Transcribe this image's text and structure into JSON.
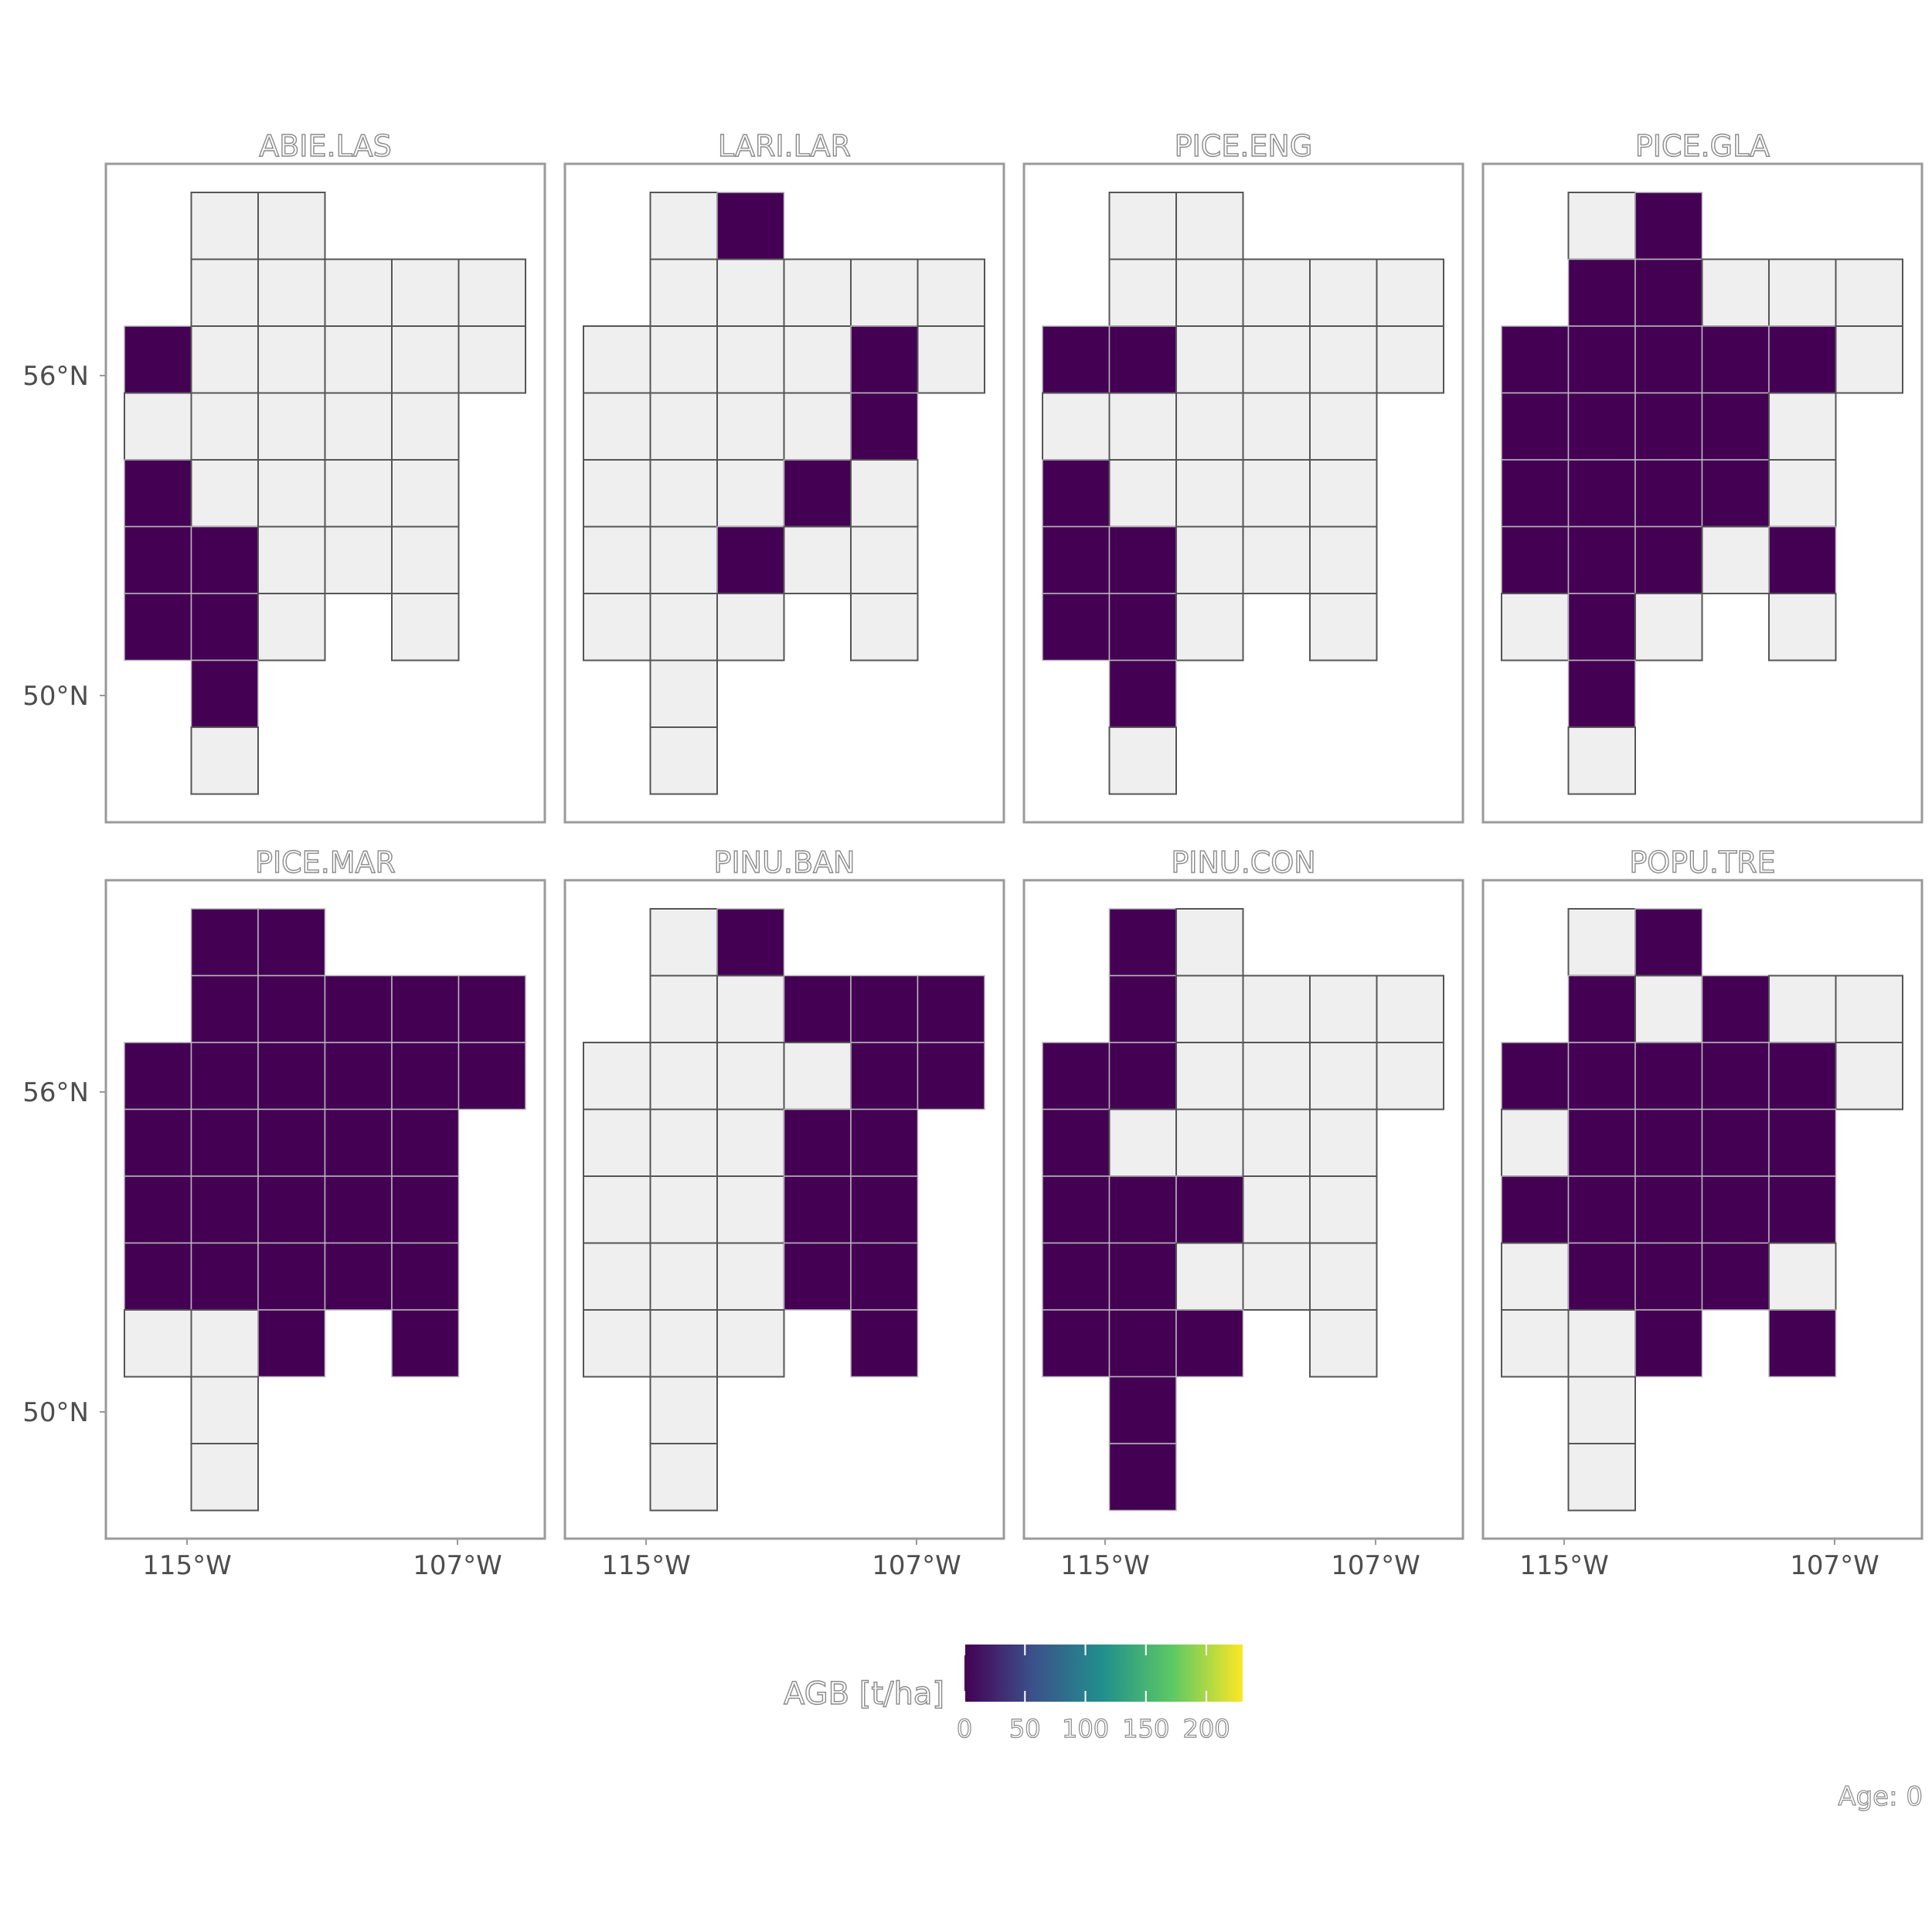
{
  "chart_data": {
    "type": "heatmap",
    "facets": [
      "ABIE.LAS",
      "LARI.LAR",
      "PICE.ENG",
      "PICE.GLA",
      "PICE.MAR",
      "PINU.BAN",
      "PINU.CON",
      "POPU.TRE"
    ],
    "x_ticks": [
      "115°W",
      "107°W"
    ],
    "y_ticks": [
      "56°N",
      "50°N"
    ],
    "legend": {
      "title": "AGB [t/ha]",
      "ticks": [
        "0",
        "50",
        "100",
        "150",
        "200"
      ],
      "range": [
        0,
        230
      ],
      "colors": [
        "#440154",
        "#3b528b",
        "#21908c",
        "#5dc963",
        "#fde725"
      ]
    },
    "caption": "Age: 0",
    "grid_columns": [
      "c1",
      "c2",
      "c3",
      "c4",
      "c5",
      "c6"
    ],
    "grid_rows": [
      "r1",
      "r2",
      "r3",
      "r4",
      "r5",
      "r6",
      "r7",
      "r8",
      "r9"
    ],
    "cells_present": [
      [
        1,
        0
      ],
      [
        2,
        0
      ],
      [
        1,
        1
      ],
      [
        2,
        1
      ],
      [
        3,
        1
      ],
      [
        4,
        1
      ],
      [
        5,
        1
      ],
      [
        0,
        2
      ],
      [
        1,
        2
      ],
      [
        2,
        2
      ],
      [
        3,
        2
      ],
      [
        4,
        2
      ],
      [
        5,
        2
      ],
      [
        0,
        3
      ],
      [
        1,
        3
      ],
      [
        2,
        3
      ],
      [
        3,
        3
      ],
      [
        4,
        3
      ],
      [
        0,
        4
      ],
      [
        1,
        4
      ],
      [
        2,
        4
      ],
      [
        3,
        4
      ],
      [
        4,
        4
      ],
      [
        0,
        5
      ],
      [
        1,
        5
      ],
      [
        2,
        5
      ],
      [
        3,
        5
      ],
      [
        4,
        5
      ],
      [
        0,
        6
      ],
      [
        1,
        6
      ],
      [
        2,
        6
      ],
      [
        4,
        6
      ],
      [
        1,
        7
      ],
      [
        1,
        8
      ]
    ],
    "agb_values": {
      "ABIE.LAS": [
        0,
        0,
        0,
        0,
        0,
        0,
        0,
        0,
        0,
        0,
        0,
        0,
        0,
        0,
        0,
        0,
        0,
        0,
        0,
        0,
        0,
        0,
        0,
        0,
        0,
        0,
        0,
        0,
        0,
        0,
        0,
        0,
        0,
        0,
        0
      ],
      "LARI.LAR": [
        0,
        0,
        0,
        0,
        0,
        0,
        0,
        0,
        0,
        0,
        0,
        0,
        0,
        0,
        0,
        0,
        0,
        0,
        0,
        0,
        0,
        0,
        0,
        0,
        0,
        0,
        0,
        0,
        0,
        0,
        0,
        0,
        0,
        0,
        0
      ],
      "PICE.ENG": [
        0,
        0,
        0,
        0,
        0,
        0,
        0,
        0,
        0,
        0,
        0,
        0,
        0,
        0,
        0,
        0,
        0,
        0,
        0,
        0,
        0,
        0,
        0,
        0,
        0,
        0,
        0,
        0,
        0,
        0,
        0,
        0,
        0,
        0,
        0
      ],
      "PICE.GLA": [
        0,
        0,
        0,
        0,
        0,
        0,
        0,
        0,
        0,
        0,
        0,
        0,
        0,
        0,
        0,
        0,
        0,
        0,
        0,
        0,
        0,
        0,
        0,
        0,
        0,
        0,
        0,
        0,
        0,
        0,
        0,
        0,
        0,
        0,
        0
      ],
      "PICE.MAR": [
        0,
        0,
        0,
        0,
        0,
        0,
        0,
        0,
        0,
        0,
        0,
        0,
        0,
        0,
        0,
        0,
        0,
        0,
        0,
        0,
        0,
        0,
        0,
        0,
        0,
        0,
        0,
        0,
        0,
        0,
        0,
        0,
        0,
        0,
        0
      ],
      "PINU.BAN": [
        0,
        0,
        0,
        0,
        0,
        0,
        0,
        0,
        0,
        0,
        0,
        0,
        0,
        0,
        0,
        0,
        0,
        0,
        0,
        0,
        0,
        0,
        0,
        0,
        0,
        0,
        0,
        0,
        0,
        0,
        0,
        0,
        0,
        0,
        0
      ],
      "PINU.CON": [
        0,
        0,
        0,
        0,
        0,
        0,
        0,
        0,
        0,
        0,
        0,
        0,
        0,
        0,
        0,
        0,
        0,
        0,
        0,
        0,
        0,
        0,
        0,
        0,
        0,
        0,
        0,
        0,
        0,
        0,
        0,
        0,
        0,
        0,
        0
      ],
      "POPU.TRE": [
        0,
        0,
        0,
        0,
        0,
        0,
        0,
        0,
        0,
        0,
        0,
        0,
        0,
        0,
        0,
        0,
        0,
        0,
        0,
        0,
        0,
        0,
        0,
        0,
        0,
        0,
        0,
        0,
        0,
        0,
        0,
        0,
        0,
        0,
        0
      ]
    },
    "filled_cells": {
      "ABIE.LAS": [
        [
          0,
          2
        ],
        [
          0,
          4
        ],
        [
          0,
          5
        ],
        [
          1,
          5
        ],
        [
          0,
          6
        ],
        [
          1,
          6
        ],
        [
          1,
          7
        ]
      ],
      "LARI.LAR": [
        [
          2,
          0
        ],
        [
          4,
          2
        ],
        [
          4,
          3
        ],
        [
          3,
          4
        ],
        [
          2,
          5
        ]
      ],
      "PICE.ENG": [
        [
          0,
          2
        ],
        [
          1,
          2
        ],
        [
          0,
          4
        ],
        [
          0,
          5
        ],
        [
          1,
          5
        ],
        [
          0,
          6
        ],
        [
          1,
          6
        ],
        [
          1,
          7
        ]
      ],
      "PICE.GLA": [
        [
          2,
          0
        ],
        [
          1,
          1
        ],
        [
          2,
          1
        ],
        [
          0,
          2
        ],
        [
          1,
          2
        ],
        [
          2,
          2
        ],
        [
          3,
          2
        ],
        [
          4,
          2
        ],
        [
          0,
          3
        ],
        [
          1,
          3
        ],
        [
          2,
          3
        ],
        [
          3,
          3
        ],
        [
          0,
          4
        ],
        [
          1,
          4
        ],
        [
          2,
          4
        ],
        [
          3,
          4
        ],
        [
          0,
          5
        ],
        [
          1,
          5
        ],
        [
          2,
          5
        ],
        [
          4,
          5
        ],
        [
          1,
          6
        ],
        [
          1,
          7
        ]
      ],
      "PICE.MAR": [
        [
          1,
          0
        ],
        [
          2,
          0
        ],
        [
          1,
          1
        ],
        [
          2,
          1
        ],
        [
          3,
          1
        ],
        [
          4,
          1
        ],
        [
          5,
          1
        ],
        [
          0,
          2
        ],
        [
          1,
          2
        ],
        [
          2,
          2
        ],
        [
          3,
          2
        ],
        [
          4,
          2
        ],
        [
          5,
          2
        ],
        [
          0,
          3
        ],
        [
          1,
          3
        ],
        [
          2,
          3
        ],
        [
          3,
          3
        ],
        [
          4,
          3
        ],
        [
          0,
          4
        ],
        [
          1,
          4
        ],
        [
          2,
          4
        ],
        [
          3,
          4
        ],
        [
          4,
          4
        ],
        [
          0,
          5
        ],
        [
          1,
          5
        ],
        [
          2,
          5
        ],
        [
          3,
          5
        ],
        [
          4,
          5
        ],
        [
          2,
          6
        ],
        [
          4,
          6
        ]
      ],
      "PINU.BAN": [
        [
          2,
          0
        ],
        [
          3,
          1
        ],
        [
          4,
          1
        ],
        [
          5,
          1
        ],
        [
          4,
          2
        ],
        [
          5,
          2
        ],
        [
          3,
          3
        ],
        [
          4,
          3
        ],
        [
          3,
          4
        ],
        [
          4,
          4
        ],
        [
          3,
          5
        ],
        [
          4,
          5
        ],
        [
          4,
          6
        ]
      ],
      "PINU.CON": [
        [
          1,
          0
        ],
        [
          1,
          1
        ],
        [
          0,
          2
        ],
        [
          1,
          2
        ],
        [
          0,
          3
        ],
        [
          0,
          4
        ],
        [
          1,
          4
        ],
        [
          2,
          4
        ],
        [
          0,
          5
        ],
        [
          1,
          5
        ],
        [
          0,
          6
        ],
        [
          1,
          6
        ],
        [
          2,
          6
        ],
        [
          1,
          7
        ],
        [
          1,
          8
        ]
      ],
      "POPU.TRE": [
        [
          2,
          0
        ],
        [
          1,
          1
        ],
        [
          3,
          1
        ],
        [
          0,
          2
        ],
        [
          1,
          2
        ],
        [
          2,
          2
        ],
        [
          3,
          2
        ],
        [
          4,
          2
        ],
        [
          1,
          3
        ],
        [
          2,
          3
        ],
        [
          3,
          3
        ],
        [
          4,
          3
        ],
        [
          0,
          4
        ],
        [
          1,
          4
        ],
        [
          2,
          4
        ],
        [
          3,
          4
        ],
        [
          4,
          4
        ],
        [
          1,
          5
        ],
        [
          2,
          5
        ],
        [
          3,
          5
        ],
        [
          2,
          6
        ],
        [
          4,
          6
        ]
      ]
    }
  }
}
